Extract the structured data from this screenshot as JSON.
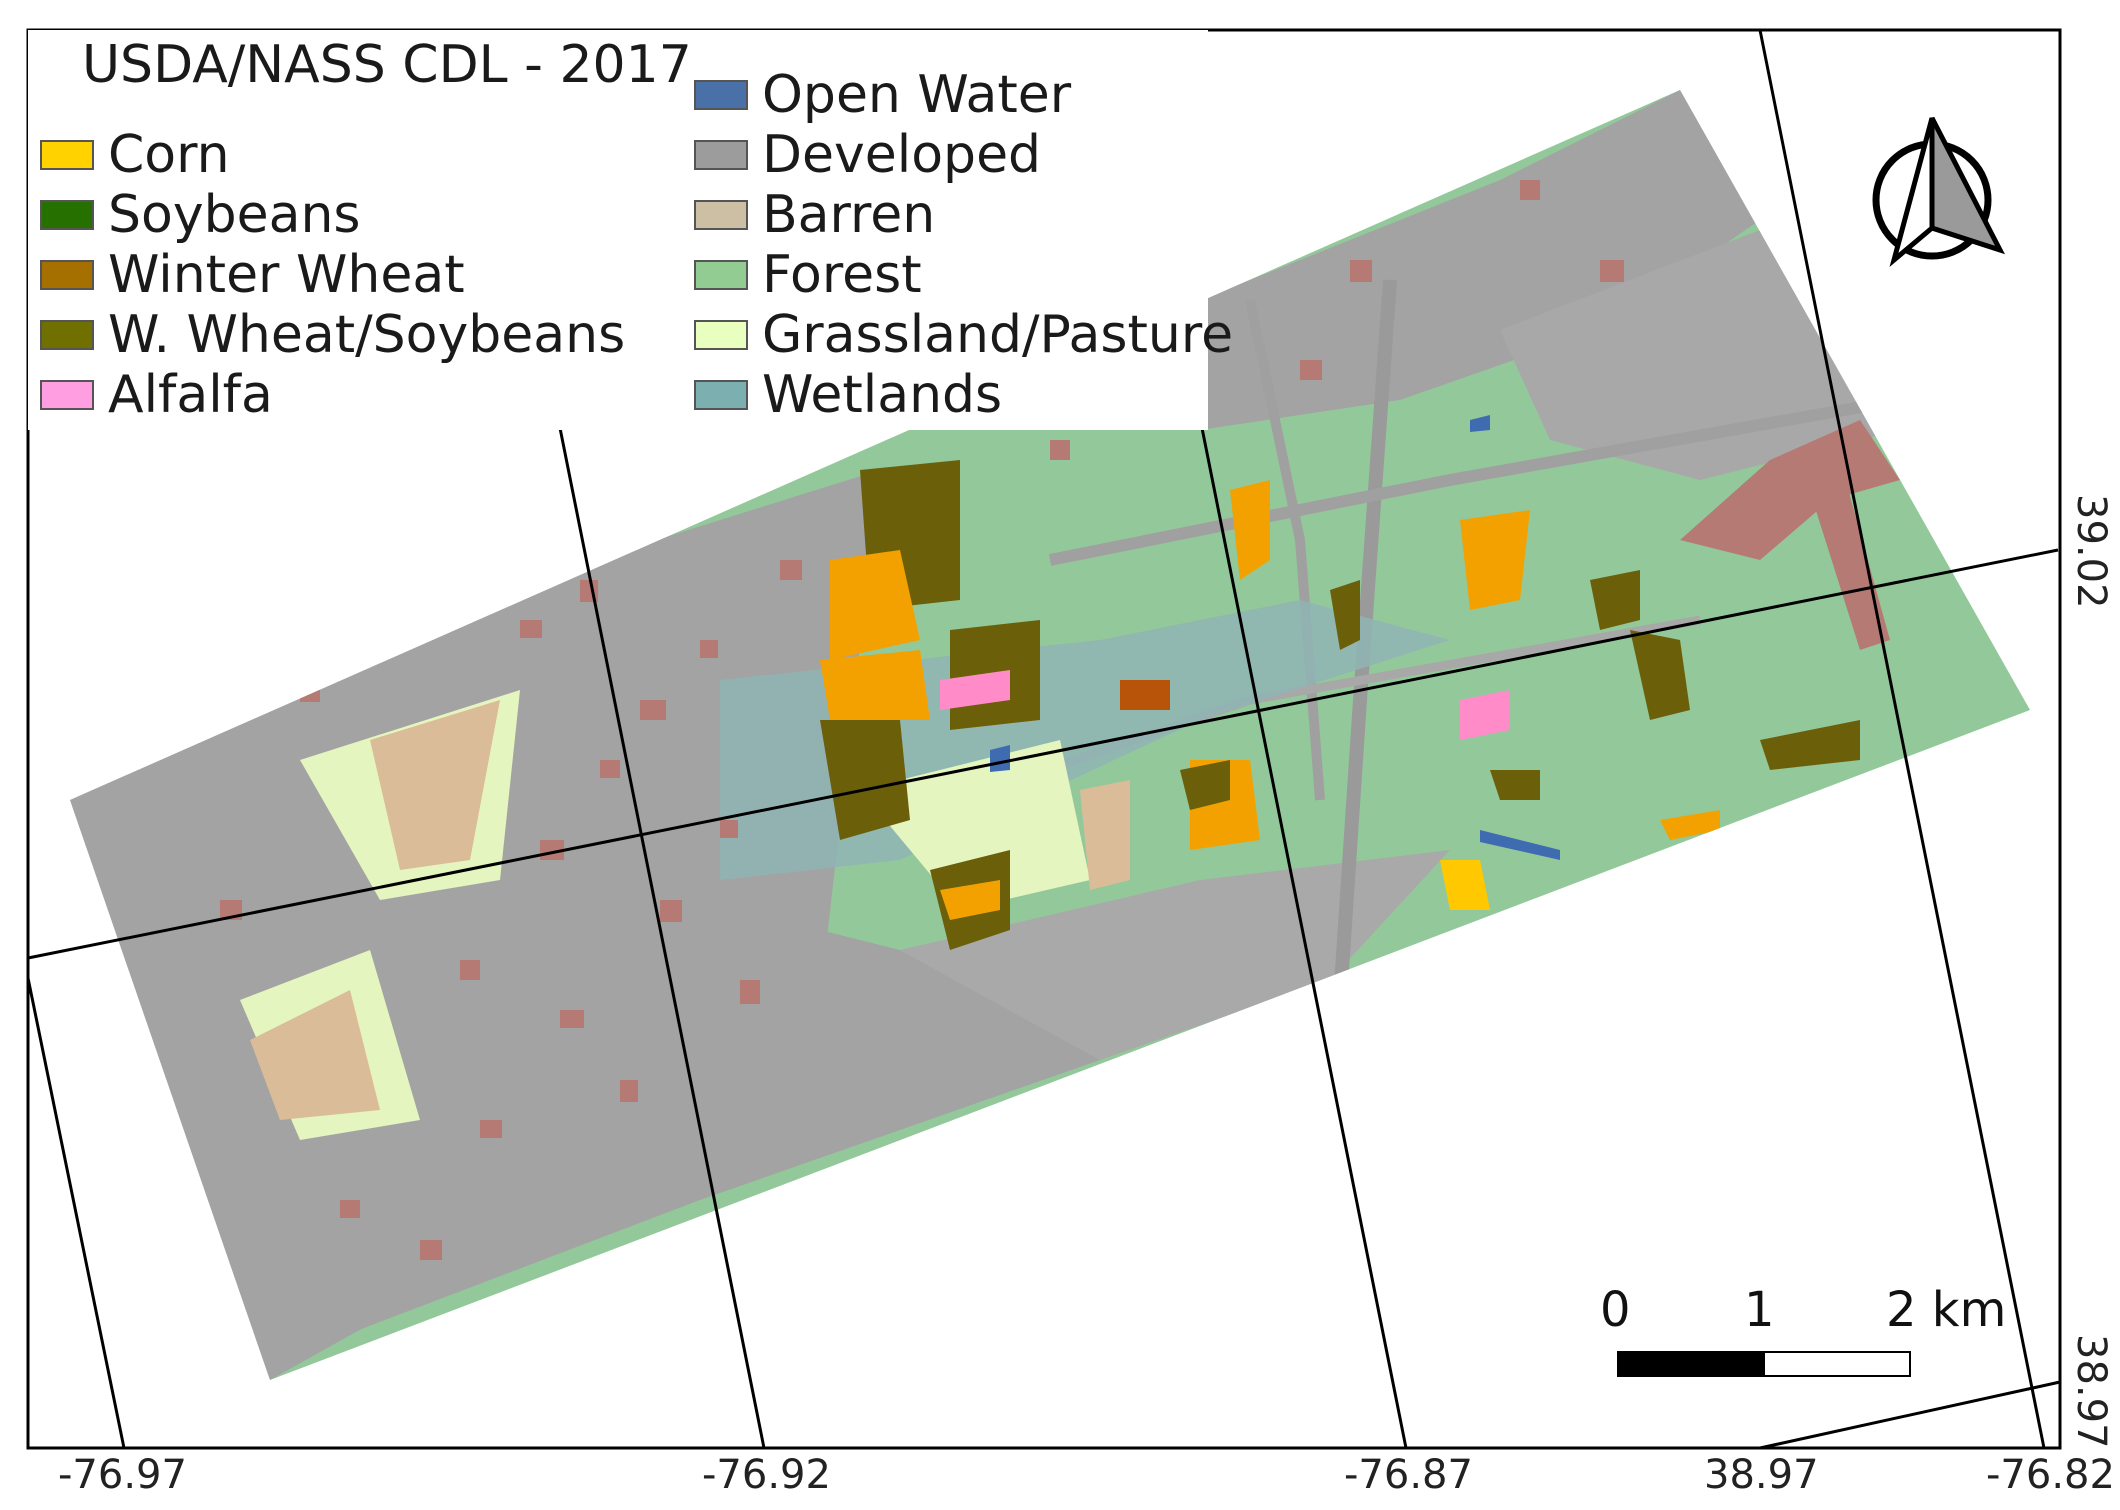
{
  "legend": {
    "title": "USDA/NASS CDL - 2017",
    "items": [
      {
        "label": "Corn",
        "color": "#ffd200"
      },
      {
        "label": "Soybeans",
        "color": "#267000"
      },
      {
        "label": "Winter Wheat",
        "color": "#a57000"
      },
      {
        "label": "W. Wheat/Soybeans",
        "color": "#707000"
      },
      {
        "label": "Alfalfa",
        "color": "#ff9ee0"
      },
      {
        "label": "Open Water",
        "color": "#4a70a8"
      },
      {
        "label": "Developed",
        "color": "#9c9c9c"
      },
      {
        "label": "Barren",
        "color": "#ccbfa3"
      },
      {
        "label": "Forest",
        "color": "#93cc93"
      },
      {
        "label": "Grassland/Pasture",
        "color": "#e8ffbf"
      },
      {
        "label": "Wetlands",
        "color": "#7cafaf"
      }
    ]
  },
  "grid": {
    "bottom_ticks": [
      "-76.97",
      "-76.92",
      "-76.87",
      "38.97",
      "-76.82"
    ],
    "right_ticks": [
      "39.02",
      "38.97"
    ]
  },
  "scale_bar": {
    "labels": [
      "0",
      "1",
      "2 km"
    ]
  },
  "colors": {
    "developed": "#a3a3a3",
    "developed_dark": "#9a9a9a",
    "forest": "#93c99a",
    "forest_light": "#9fd3a3",
    "wetlands": "#8fb5b5",
    "corn_orange": "#f2a100",
    "corn_yellow": "#ffc800",
    "wheat_soy": "#6b5f0a",
    "winter_wheat": "#b8530a",
    "brick": "#b57a74",
    "barren": "#dbbc98",
    "grass": "#e5f5bf",
    "alfalfa": "#ff8cc8",
    "water": "#3f6bb0"
  },
  "north_arrow": {
    "icon": "north-arrow-icon"
  }
}
